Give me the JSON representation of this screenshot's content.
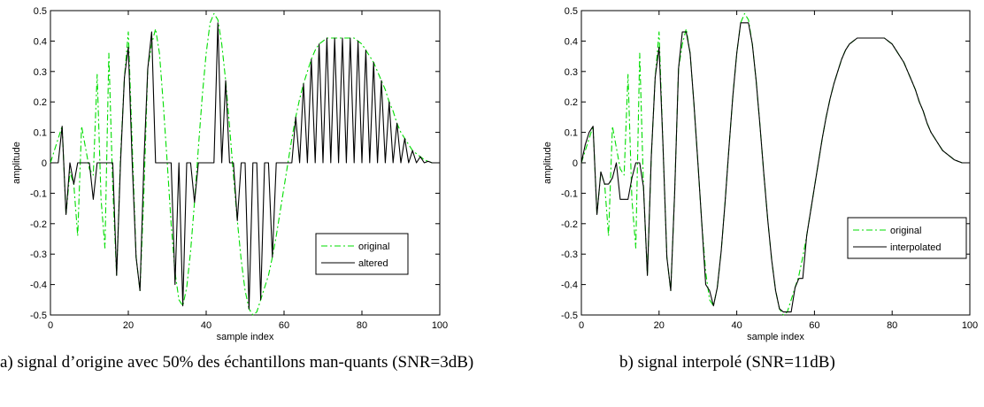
{
  "chart_data": [
    {
      "type": "line",
      "panel": "a",
      "xlabel": "sample index",
      "ylabel": "amplitude",
      "xlim": [
        0,
        100
      ],
      "ylim": [
        -0.5,
        0.5
      ],
      "xticks": [
        "0",
        "20",
        "40",
        "60",
        "80",
        "100"
      ],
      "yticks": [
        "0.5",
        "0.4",
        "0.3",
        "0.2",
        "0.1",
        "0",
        "-0.1",
        "-0.2",
        "-0.3",
        "-0.4",
        "-0.5"
      ],
      "legend_position": "bottom-right",
      "caption": "a) signal d’origine avec 50% des échantillons man-quants (SNR=3dB)",
      "series": [
        {
          "name": "original",
          "style": "dash-dot",
          "color": "#00dd00",
          "x": [
            0,
            1,
            2,
            3,
            4,
            5,
            6,
            7,
            8,
            9,
            10,
            11,
            12,
            13,
            14,
            15,
            16,
            17,
            18,
            19,
            20,
            21,
            22,
            23,
            24,
            25,
            26,
            27,
            28,
            29,
            30,
            31,
            32,
            33,
            34,
            35,
            36,
            37,
            38,
            39,
            40,
            41,
            42,
            43,
            44,
            45,
            46,
            47,
            48,
            49,
            50,
            51,
            52,
            53,
            54,
            55,
            56,
            57,
            58,
            59,
            60,
            61,
            62,
            63,
            64,
            65,
            66,
            67,
            68,
            69,
            70,
            71,
            72,
            73,
            74,
            75,
            76,
            77,
            78,
            79,
            80,
            81,
            82,
            83,
            84,
            85,
            86,
            87,
            88,
            89,
            90,
            91,
            92,
            93,
            94,
            95,
            96,
            97,
            98,
            99,
            100
          ],
          "y": [
            0,
            0.04,
            0.08,
            0.12,
            -0.17,
            -0.03,
            -0.07,
            -0.24,
            0.12,
            0.05,
            -0.02,
            -0.04,
            0.29,
            -0.12,
            -0.28,
            0.36,
            -0.08,
            -0.37,
            0.02,
            0.28,
            0.43,
            0.06,
            -0.31,
            -0.42,
            -0.1,
            0.31,
            0.39,
            0.44,
            0.36,
            0.19,
            0.0,
            -0.2,
            -0.36,
            -0.45,
            -0.47,
            -0.41,
            -0.29,
            -0.13,
            0.05,
            0.22,
            0.36,
            0.46,
            0.49,
            0.47,
            0.39,
            0.27,
            0.12,
            -0.04,
            -0.19,
            -0.32,
            -0.42,
            -0.48,
            -0.5,
            -0.49,
            -0.45,
            -0.41,
            -0.37,
            -0.31,
            -0.24,
            -0.16,
            -0.08,
            0.0,
            0.08,
            0.15,
            0.21,
            0.26,
            0.3,
            0.34,
            0.37,
            0.39,
            0.4,
            0.41,
            0.41,
            0.41,
            0.41,
            0.41,
            0.41,
            0.41,
            0.41,
            0.4,
            0.39,
            0.37,
            0.35,
            0.33,
            0.3,
            0.27,
            0.24,
            0.2,
            0.17,
            0.13,
            0.1,
            0.08,
            0.06,
            0.04,
            0.03,
            0.02,
            0.01,
            0.005,
            0.0,
            0.0,
            0.0
          ]
        },
        {
          "name": "altered",
          "style": "solid",
          "color": "#000000",
          "x": [
            0,
            1,
            2,
            3,
            4,
            5,
            6,
            7,
            8,
            9,
            10,
            11,
            12,
            13,
            14,
            15,
            16,
            17,
            18,
            19,
            20,
            21,
            22,
            23,
            24,
            25,
            26,
            27,
            28,
            29,
            30,
            31,
            32,
            33,
            34,
            35,
            36,
            37,
            38,
            39,
            40,
            41,
            42,
            43,
            44,
            45,
            46,
            47,
            48,
            49,
            50,
            51,
            52,
            53,
            54,
            55,
            56,
            57,
            58,
            59,
            60,
            61,
            62,
            63,
            64,
            65,
            66,
            67,
            68,
            69,
            70,
            71,
            72,
            73,
            74,
            75,
            76,
            77,
            78,
            79,
            80,
            81,
            82,
            83,
            84,
            85,
            86,
            87,
            88,
            89,
            90,
            91,
            92,
            93,
            94,
            95,
            96,
            97,
            98,
            99,
            100
          ],
          "y": [
            0,
            0,
            0,
            0.12,
            -0.17,
            0,
            -0.07,
            0,
            0,
            0,
            0,
            -0.12,
            0,
            0,
            0,
            0,
            0,
            -0.37,
            0,
            0.28,
            0.38,
            0,
            -0.31,
            -0.42,
            0,
            0.31,
            0.43,
            0,
            0,
            0,
            0,
            0,
            -0.4,
            0,
            -0.47,
            0,
            0,
            -0.13,
            0,
            0,
            0,
            0,
            0,
            0.46,
            0,
            0.27,
            0,
            0,
            -0.19,
            0,
            0,
            -0.48,
            0,
            0,
            -0.45,
            0,
            0,
            -0.31,
            0,
            0,
            0,
            0,
            0,
            0.15,
            0,
            0.26,
            0,
            0.34,
            0,
            0.39,
            0,
            0.41,
            0,
            0.41,
            0,
            0.41,
            0,
            0.41,
            0,
            0.4,
            0,
            0.37,
            0,
            0.33,
            0,
            0.27,
            0,
            0.2,
            0,
            0.13,
            0,
            0.08,
            0,
            0.04,
            0,
            0.02,
            0,
            0.005,
            0,
            0,
            0
          ]
        }
      ]
    },
    {
      "type": "line",
      "panel": "b",
      "xlabel": "sample index",
      "ylabel": "amplitude",
      "xlim": [
        0,
        100
      ],
      "ylim": [
        -0.5,
        0.5
      ],
      "xticks": [
        "0",
        "20",
        "40",
        "60",
        "80",
        "100"
      ],
      "yticks": [
        "0.5",
        "0.4",
        "0.3",
        "0.2",
        "0.1",
        "0",
        "-0.1",
        "-0.2",
        "-0.3",
        "-0.4",
        "-0.5"
      ],
      "legend_position": "right",
      "caption": "b) signal interpolé (SNR=11dB)",
      "series": [
        {
          "name": "original",
          "style": "dash-dot",
          "color": "#00dd00",
          "x": [
            0,
            1,
            2,
            3,
            4,
            5,
            6,
            7,
            8,
            9,
            10,
            11,
            12,
            13,
            14,
            15,
            16,
            17,
            18,
            19,
            20,
            21,
            22,
            23,
            24,
            25,
            26,
            27,
            28,
            29,
            30,
            31,
            32,
            33,
            34,
            35,
            36,
            37,
            38,
            39,
            40,
            41,
            42,
            43,
            44,
            45,
            46,
            47,
            48,
            49,
            50,
            51,
            52,
            53,
            54,
            55,
            56,
            57,
            58,
            59,
            60,
            61,
            62,
            63,
            64,
            65,
            66,
            67,
            68,
            69,
            70,
            71,
            72,
            73,
            74,
            75,
            76,
            77,
            78,
            79,
            80,
            81,
            82,
            83,
            84,
            85,
            86,
            87,
            88,
            89,
            90,
            91,
            92,
            93,
            94,
            95,
            96,
            97,
            98,
            99,
            100
          ],
          "y": [
            0,
            0.04,
            0.08,
            0.12,
            -0.17,
            -0.03,
            -0.07,
            -0.24,
            0.12,
            0.05,
            -0.02,
            -0.04,
            0.29,
            -0.12,
            -0.28,
            0.36,
            -0.08,
            -0.37,
            0.02,
            0.28,
            0.43,
            0.06,
            -0.31,
            -0.42,
            -0.1,
            0.31,
            0.39,
            0.44,
            0.36,
            0.19,
            0.0,
            -0.2,
            -0.36,
            -0.45,
            -0.47,
            -0.41,
            -0.29,
            -0.13,
            0.05,
            0.22,
            0.36,
            0.46,
            0.49,
            0.47,
            0.39,
            0.27,
            0.12,
            -0.04,
            -0.19,
            -0.32,
            -0.42,
            -0.48,
            -0.5,
            -0.49,
            -0.45,
            -0.41,
            -0.37,
            -0.31,
            -0.24,
            -0.16,
            -0.08,
            0.0,
            0.08,
            0.15,
            0.21,
            0.26,
            0.3,
            0.34,
            0.37,
            0.39,
            0.4,
            0.41,
            0.41,
            0.41,
            0.41,
            0.41,
            0.41,
            0.41,
            0.41,
            0.4,
            0.39,
            0.37,
            0.35,
            0.33,
            0.3,
            0.27,
            0.24,
            0.2,
            0.17,
            0.13,
            0.1,
            0.08,
            0.06,
            0.04,
            0.03,
            0.02,
            0.01,
            0.005,
            0.0,
            0.0,
            0.0
          ]
        },
        {
          "name": "interpolated",
          "style": "solid",
          "color": "#000000",
          "x": [
            0,
            1,
            2,
            3,
            4,
            5,
            6,
            7,
            8,
            9,
            10,
            11,
            12,
            13,
            14,
            15,
            16,
            17,
            18,
            19,
            20,
            21,
            22,
            23,
            24,
            25,
            26,
            27,
            28,
            29,
            30,
            31,
            32,
            33,
            34,
            35,
            36,
            37,
            38,
            39,
            40,
            41,
            42,
            43,
            44,
            45,
            46,
            47,
            48,
            49,
            50,
            51,
            52,
            53,
            54,
            55,
            56,
            57,
            58,
            59,
            60,
            61,
            62,
            63,
            64,
            65,
            66,
            67,
            68,
            69,
            70,
            71,
            72,
            73,
            74,
            75,
            76,
            77,
            78,
            79,
            80,
            81,
            82,
            83,
            84,
            85,
            86,
            87,
            88,
            89,
            90,
            91,
            92,
            93,
            94,
            95,
            96,
            97,
            98,
            99,
            100
          ],
          "y": [
            0,
            0.06,
            0.1,
            0.12,
            -0.17,
            -0.03,
            -0.07,
            -0.07,
            -0.05,
            0.0,
            -0.12,
            -0.12,
            -0.12,
            -0.05,
            0.0,
            0.0,
            -0.08,
            -0.37,
            0.02,
            0.28,
            0.38,
            0.06,
            -0.31,
            -0.42,
            -0.1,
            0.31,
            0.43,
            0.43,
            0.36,
            0.19,
            0.0,
            -0.2,
            -0.4,
            -0.42,
            -0.47,
            -0.41,
            -0.29,
            -0.13,
            0.05,
            0.22,
            0.36,
            0.46,
            0.46,
            0.46,
            0.39,
            0.27,
            0.12,
            -0.04,
            -0.19,
            -0.32,
            -0.42,
            -0.48,
            -0.49,
            -0.49,
            -0.49,
            -0.41,
            -0.38,
            -0.38,
            -0.24,
            -0.16,
            -0.08,
            0.0,
            0.08,
            0.15,
            0.21,
            0.26,
            0.3,
            0.34,
            0.37,
            0.39,
            0.4,
            0.41,
            0.41,
            0.41,
            0.41,
            0.41,
            0.41,
            0.41,
            0.41,
            0.4,
            0.39,
            0.37,
            0.35,
            0.33,
            0.3,
            0.27,
            0.24,
            0.2,
            0.17,
            0.13,
            0.1,
            0.08,
            0.06,
            0.04,
            0.03,
            0.02,
            0.01,
            0.005,
            0.0,
            0.0,
            0.0
          ]
        }
      ]
    }
  ],
  "captions": {
    "a": "a) signal d’origine avec 50% des échantillons man-quants (SNR=3dB)",
    "b": "b) signal interpolé (SNR=11dB)"
  }
}
